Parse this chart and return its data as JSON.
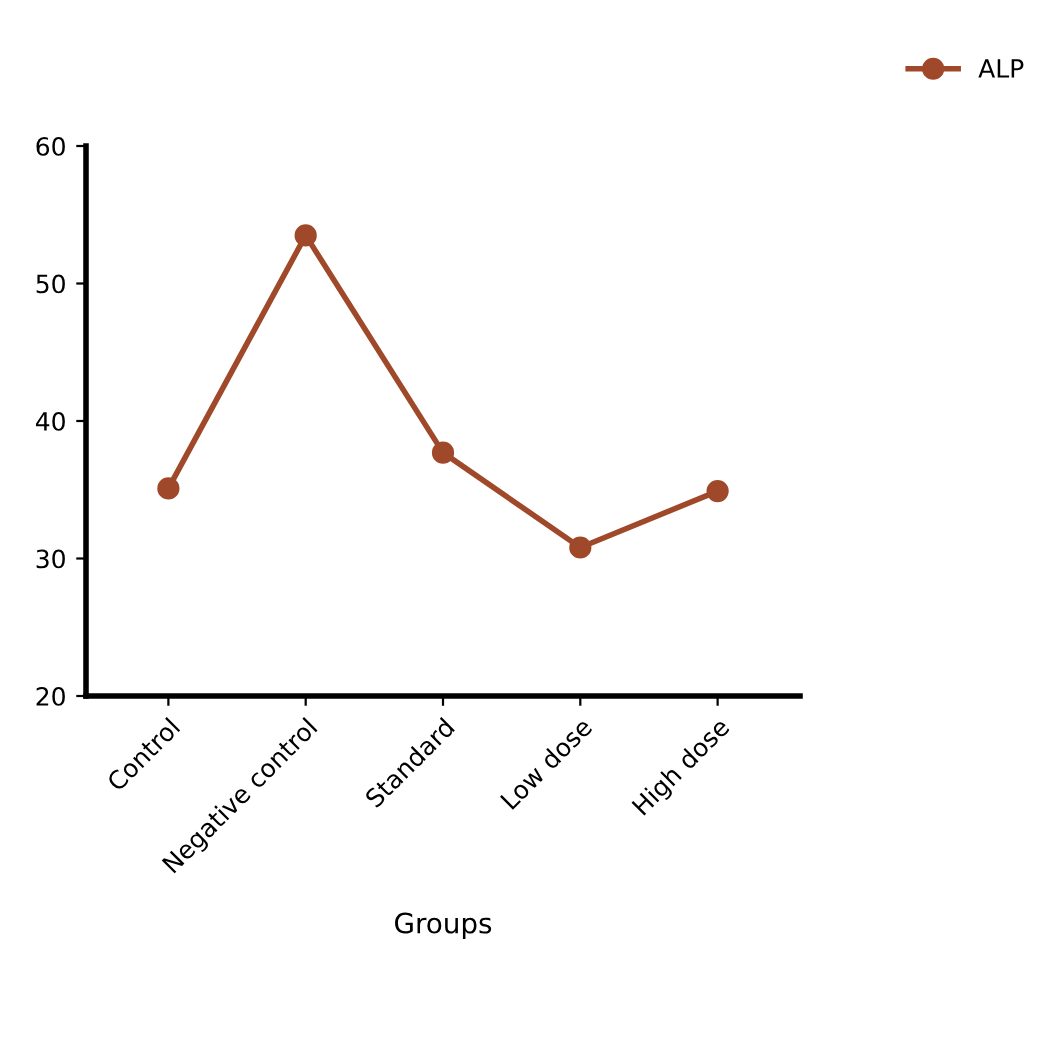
{
  "chart_data": {
    "type": "line",
    "xlabel": "Groups",
    "categories": [
      "Control",
      "Negative control",
      "Standard",
      "Low dose",
      "High dose"
    ],
    "series": [
      {
        "name": "ALP",
        "color": "#a0492a",
        "values": [
          35.1,
          53.5,
          37.7,
          30.8,
          34.9
        ]
      }
    ],
    "ylim": [
      20,
      60
    ],
    "yticks": [
      20,
      30,
      40,
      50,
      60
    ],
    "grid": false,
    "legend": "top right",
    "marker": "circle",
    "line_style": "solid"
  }
}
